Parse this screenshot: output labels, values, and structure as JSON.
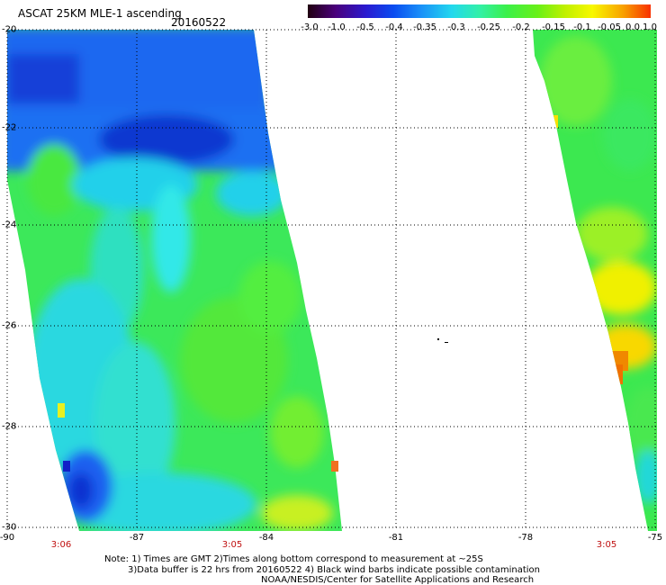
{
  "header": {
    "title": "ASCAT 25KM MLE-1 ascending",
    "date": "20160522"
  },
  "colorbar": {
    "labels": [
      "-3.0",
      "-1.0",
      "-0.5",
      "-0.4",
      "-0.35",
      "-0.3",
      "-0.25",
      "-0.2",
      "-0.15",
      "-0.1",
      "-0.05",
      "0.0",
      "1.0"
    ],
    "colors": [
      "#200010",
      "#4a007a",
      "#2a1ad0",
      "#0a4cf0",
      "#1a90f8",
      "#22d8ee",
      "#32f0a8",
      "#3af04a",
      "#68f018",
      "#c0f000",
      "#f8f800",
      "#f8a000",
      "#f83000"
    ]
  },
  "map": {
    "lon_labels": [
      "-90",
      "-87",
      "-84",
      "-81",
      "-78",
      "-75"
    ],
    "lat_labels": [
      "-20",
      "-22",
      "-24",
      "-26",
      "-28",
      "-30"
    ],
    "swath_times": [
      {
        "lon": "-90",
        "text": "3:06"
      },
      {
        "lon": "-84",
        "text": "3:05"
      },
      {
        "lon": "-75",
        "text": "3:05"
      }
    ]
  },
  "notes": [
    "Note: 1) Times are GMT 2)Times along bottom correspond to measurement at ~25S",
    "3)Data buffer is 22 hrs from 20160522 4) Black wind barbs indicate possible contamination",
    "NOAA/NESDIS/Center for Satellite Applications and Research"
  ]
}
